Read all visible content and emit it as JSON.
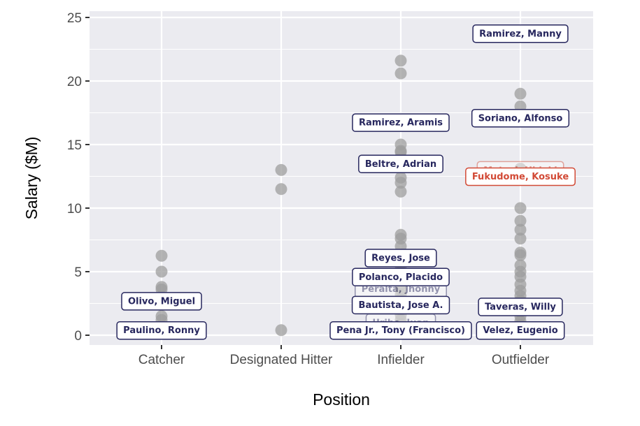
{
  "chart_data": {
    "type": "scatter",
    "title": "",
    "xlabel": "Position",
    "ylabel": "Salary ($M)",
    "categories": [
      "Catcher",
      "Designated Hitter",
      "Infielder",
      "Outfielder"
    ],
    "ylim": [
      0,
      25
    ],
    "yticks": [
      "0",
      "5",
      "10",
      "15",
      "20",
      "25"
    ],
    "grid": true,
    "colors": {
      "panel": "#ebebf0",
      "grid": "#ffffff",
      "point": "#9e9e9e",
      "label_dark": "#27275e",
      "label_red": "#d24a36"
    },
    "points": [
      {
        "x": "Catcher",
        "y": 6.25
      },
      {
        "x": "Catcher",
        "y": 5.0
      },
      {
        "x": "Catcher",
        "y": 3.8
      },
      {
        "x": "Catcher",
        "y": 3.6
      },
      {
        "x": "Catcher",
        "y": 2.7
      },
      {
        "x": "Catcher",
        "y": 1.5
      },
      {
        "x": "Catcher",
        "y": 1.2
      },
      {
        "x": "Catcher",
        "y": 0.5
      },
      {
        "x": "Catcher",
        "y": 0.4
      },
      {
        "x": "Designated Hitter",
        "y": 13.0
      },
      {
        "x": "Designated Hitter",
        "y": 11.5
      },
      {
        "x": "Designated Hitter",
        "y": 0.4
      },
      {
        "x": "Infielder",
        "y": 21.6
      },
      {
        "x": "Infielder",
        "y": 20.6
      },
      {
        "x": "Infielder",
        "y": 16.5
      },
      {
        "x": "Infielder",
        "y": 15.0
      },
      {
        "x": "Infielder",
        "y": 14.5
      },
      {
        "x": "Infielder",
        "y": 14.4
      },
      {
        "x": "Infielder",
        "y": 13.3
      },
      {
        "x": "Infielder",
        "y": 12.4
      },
      {
        "x": "Infielder",
        "y": 12.0
      },
      {
        "x": "Infielder",
        "y": 11.3
      },
      {
        "x": "Infielder",
        "y": 7.9
      },
      {
        "x": "Infielder",
        "y": 7.6
      },
      {
        "x": "Infielder",
        "y": 7.0
      },
      {
        "x": "Infielder",
        "y": 6.2
      },
      {
        "x": "Infielder",
        "y": 5.9
      },
      {
        "x": "Infielder",
        "y": 5.4
      },
      {
        "x": "Infielder",
        "y": 5.0
      },
      {
        "x": "Infielder",
        "y": 4.5
      },
      {
        "x": "Infielder",
        "y": 4.0
      },
      {
        "x": "Infielder",
        "y": 3.6
      },
      {
        "x": "Infielder",
        "y": 3.2
      },
      {
        "x": "Infielder",
        "y": 2.8
      },
      {
        "x": "Infielder",
        "y": 2.4
      },
      {
        "x": "Infielder",
        "y": 2.0
      },
      {
        "x": "Infielder",
        "y": 1.6
      },
      {
        "x": "Infielder",
        "y": 1.2
      },
      {
        "x": "Infielder",
        "y": 0.9
      },
      {
        "x": "Infielder",
        "y": 0.6
      },
      {
        "x": "Infielder",
        "y": 0.45
      },
      {
        "x": "Outfielder",
        "y": 23.9
      },
      {
        "x": "Outfielder",
        "y": 19.0
      },
      {
        "x": "Outfielder",
        "y": 18.0
      },
      {
        "x": "Outfielder",
        "y": 17.0
      },
      {
        "x": "Outfielder",
        "y": 13.1
      },
      {
        "x": "Outfielder",
        "y": 12.5
      },
      {
        "x": "Outfielder",
        "y": 10.0
      },
      {
        "x": "Outfielder",
        "y": 9.0
      },
      {
        "x": "Outfielder",
        "y": 8.3
      },
      {
        "x": "Outfielder",
        "y": 7.6
      },
      {
        "x": "Outfielder",
        "y": 6.5
      },
      {
        "x": "Outfielder",
        "y": 6.3
      },
      {
        "x": "Outfielder",
        "y": 5.5
      },
      {
        "x": "Outfielder",
        "y": 5.0
      },
      {
        "x": "Outfielder",
        "y": 4.6
      },
      {
        "x": "Outfielder",
        "y": 4.0
      },
      {
        "x": "Outfielder",
        "y": 3.5
      },
      {
        "x": "Outfielder",
        "y": 3.1
      },
      {
        "x": "Outfielder",
        "y": 2.7
      },
      {
        "x": "Outfielder",
        "y": 2.3
      },
      {
        "x": "Outfielder",
        "y": 1.9
      },
      {
        "x": "Outfielder",
        "y": 1.5
      },
      {
        "x": "Outfielder",
        "y": 1.1
      },
      {
        "x": "Outfielder",
        "y": 0.8
      },
      {
        "x": "Outfielder",
        "y": 0.5
      },
      {
        "x": "Outfielder",
        "y": 0.4
      }
    ],
    "labels": [
      {
        "text": "Ramirez, Manny",
        "x": "Outfielder",
        "y": 23.75,
        "color": "dark"
      },
      {
        "text": "Soriano, Alfonso",
        "x": "Outfielder",
        "y": 17.1,
        "color": "dark"
      },
      {
        "text": "Matsui, Hideki",
        "x": "Outfielder",
        "y": 13.0,
        "color": "red",
        "faded": true
      },
      {
        "text": "Fukudome, Kosuke",
        "x": "Outfielder",
        "y": 12.5,
        "color": "red"
      },
      {
        "text": "Taveras, Willy",
        "x": "Outfielder",
        "y": 2.25,
        "color": "dark"
      },
      {
        "text": "Velez, Eugenio",
        "x": "Outfielder",
        "y": 0.4,
        "color": "dark"
      },
      {
        "text": "Ramirez, Aramis",
        "x": "Infielder",
        "y": 16.75,
        "color": "dark"
      },
      {
        "text": "Beltre, Adrian",
        "x": "Infielder",
        "y": 13.5,
        "color": "dark"
      },
      {
        "text": "Reyes, Jose",
        "x": "Infielder",
        "y": 6.1,
        "color": "dark"
      },
      {
        "text": "Peralta, Jhonny",
        "x": "Infielder",
        "y": 3.65,
        "color": "dark",
        "faded": true
      },
      {
        "text": "Polanco, Placido",
        "x": "Infielder",
        "y": 4.6,
        "color": "dark"
      },
      {
        "text": "Bautista, Jose A.",
        "x": "Infielder",
        "y": 2.4,
        "color": "dark"
      },
      {
        "text": "Uribe, Juan",
        "x": "Infielder",
        "y": 1.0,
        "color": "dark",
        "faded": true
      },
      {
        "text": "Pena Jr., Tony (Francisco)",
        "x": "Infielder",
        "y": 0.4,
        "color": "dark"
      },
      {
        "text": "Olivo, Miguel",
        "x": "Catcher",
        "y": 2.7,
        "color": "dark"
      },
      {
        "text": "Paulino, Ronny",
        "x": "Catcher",
        "y": 0.4,
        "color": "dark"
      }
    ]
  }
}
